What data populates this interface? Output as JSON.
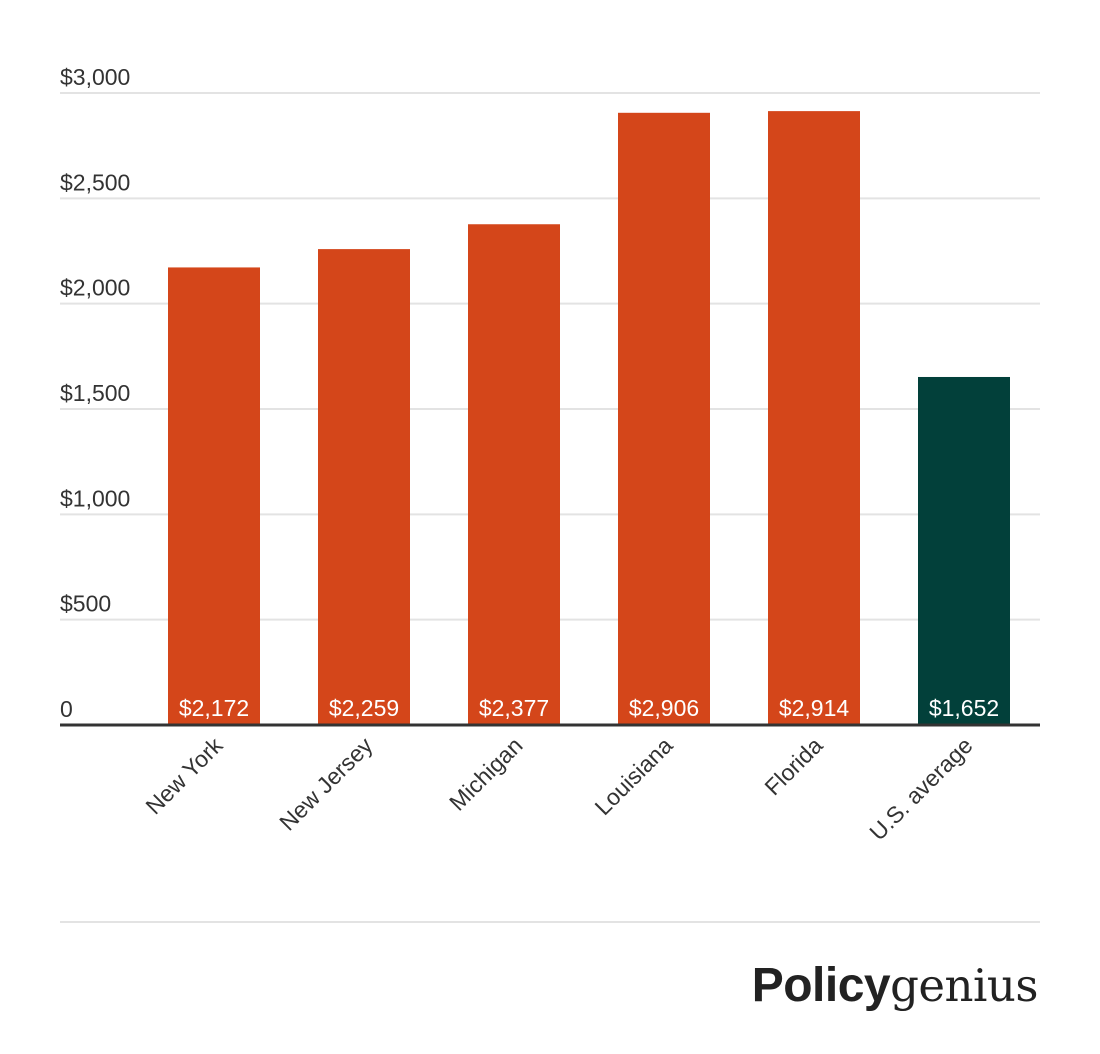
{
  "chart_data": {
    "type": "bar",
    "title": "",
    "xlabel": "",
    "ylabel": "",
    "categories": [
      "New York",
      "New Jersey",
      "Michigan",
      "Louisiana",
      "Florida",
      "U.S. average"
    ],
    "values": [
      2172,
      2259,
      2377,
      2906,
      2914,
      1652
    ],
    "data_labels": [
      "$2,172",
      "$2,259",
      "$2,377",
      "$2,906",
      "$2,914",
      "$1,652"
    ],
    "bar_colors": [
      "#d4461a",
      "#d4461a",
      "#d4461a",
      "#d4461a",
      "#d4461a",
      "#02403a"
    ],
    "ylim": [
      0,
      3000
    ],
    "y_ticks": [
      0,
      500,
      1000,
      1500,
      2000,
      2500,
      3000
    ],
    "y_tick_labels": [
      "0",
      "$500",
      "$1,000",
      "$1,500",
      "$2,000",
      "$2,500",
      "$3,000"
    ],
    "grid": true,
    "legend": "none"
  },
  "brand": {
    "bold_part": "Policy",
    "light_part": "genius"
  },
  "colors": {
    "accent": "#d4461a",
    "average": "#02403a",
    "gridline": "#e3e3e3",
    "axis": "#333333"
  }
}
